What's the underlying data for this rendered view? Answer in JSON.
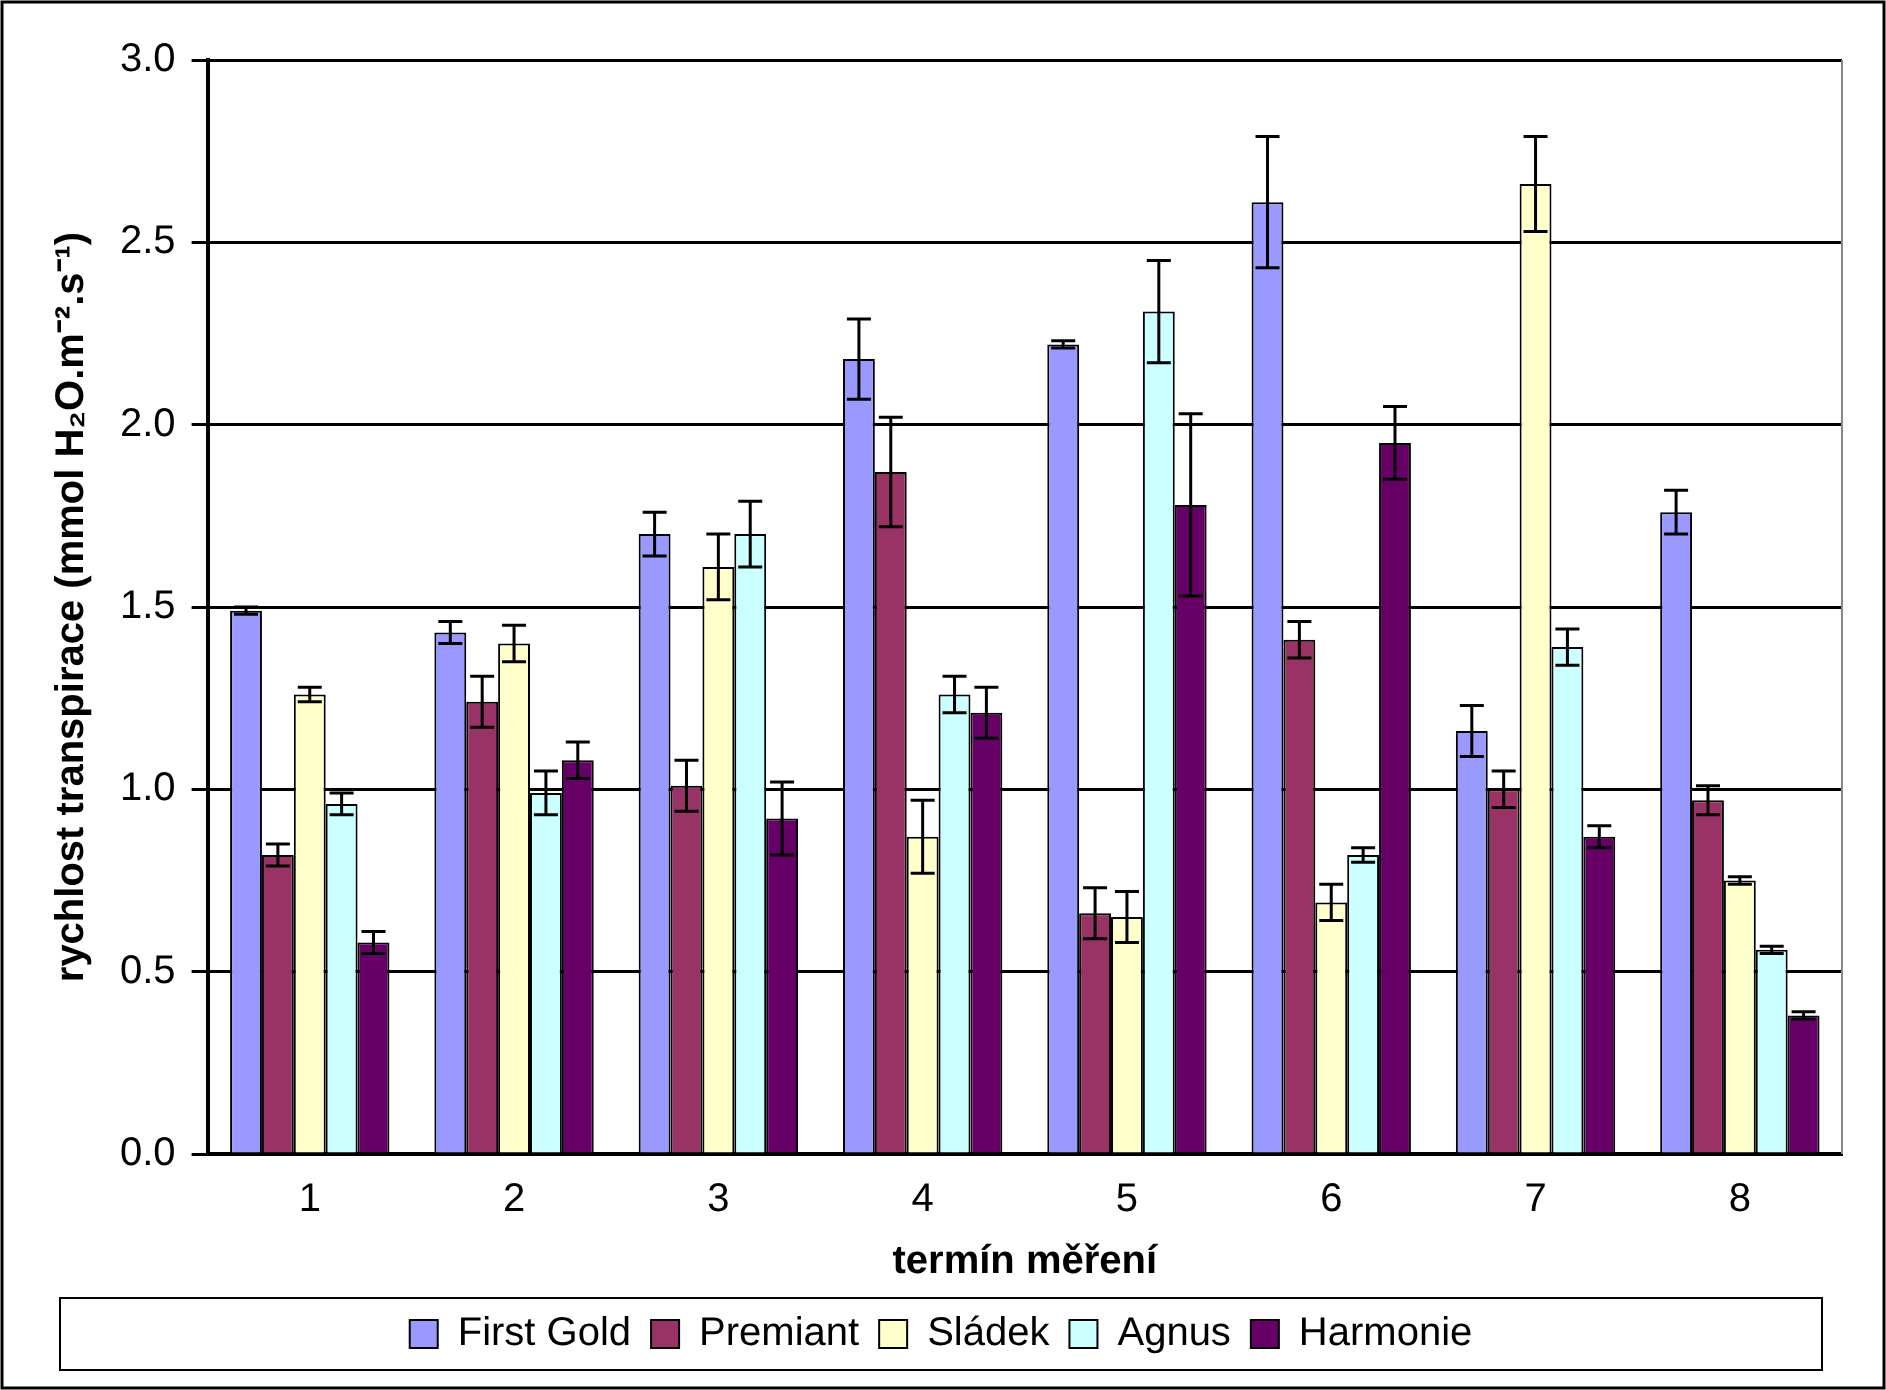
{
  "chart_data": {
    "type": "bar",
    "xlabel": "termín měření",
    "ylabel": "rychlost transpirace (mmol H₂O.m⁻².s⁻¹)",
    "categories": [
      "1",
      "2",
      "3",
      "4",
      "5",
      "6",
      "7",
      "8"
    ],
    "series": [
      {
        "name": "First Gold",
        "color": "#9999ff",
        "values": [
          1.49,
          1.43,
          1.7,
          2.18,
          2.22,
          2.61,
          1.16,
          1.76
        ],
        "errors": [
          0.01,
          0.03,
          0.06,
          0.11,
          0.01,
          0.18,
          0.07,
          0.06
        ]
      },
      {
        "name": "Premiant",
        "color": "#993366",
        "values": [
          0.82,
          1.24,
          1.01,
          1.87,
          0.66,
          1.41,
          1.0,
          0.97
        ],
        "errors": [
          0.03,
          0.07,
          0.07,
          0.15,
          0.07,
          0.05,
          0.05,
          0.04
        ]
      },
      {
        "name": "Sládek",
        "color": "#ffffcc",
        "values": [
          1.26,
          1.4,
          1.61,
          0.87,
          0.65,
          0.69,
          2.66,
          0.75
        ],
        "errors": [
          0.02,
          0.05,
          0.09,
          0.1,
          0.07,
          0.05,
          0.13,
          0.01
        ]
      },
      {
        "name": "Agnus",
        "color": "#ccffff",
        "values": [
          0.96,
          0.99,
          1.7,
          1.26,
          2.31,
          0.82,
          1.39,
          0.56
        ],
        "errors": [
          0.03,
          0.06,
          0.09,
          0.05,
          0.14,
          0.02,
          0.05,
          0.01
        ]
      },
      {
        "name": "Harmonie",
        "color": "#660066",
        "values": [
          0.58,
          1.08,
          0.92,
          1.21,
          1.78,
          1.95,
          0.87,
          0.38
        ],
        "errors": [
          0.03,
          0.05,
          0.1,
          0.07,
          0.25,
          0.1,
          0.03,
          0.01
        ]
      }
    ],
    "ylim": [
      0,
      3
    ],
    "yticks": [
      {
        "value": 0,
        "label": "0.0"
      },
      {
        "value": 0.5,
        "label": "0.5"
      },
      {
        "value": 1,
        "label": "1.0"
      },
      {
        "value": 1.5,
        "label": "1.5"
      },
      {
        "value": 2,
        "label": "2.0"
      },
      {
        "value": 2.5,
        "label": "2.5"
      },
      {
        "value": 3,
        "label": "3.0"
      }
    ],
    "grid": "y",
    "legend": "bottom"
  }
}
